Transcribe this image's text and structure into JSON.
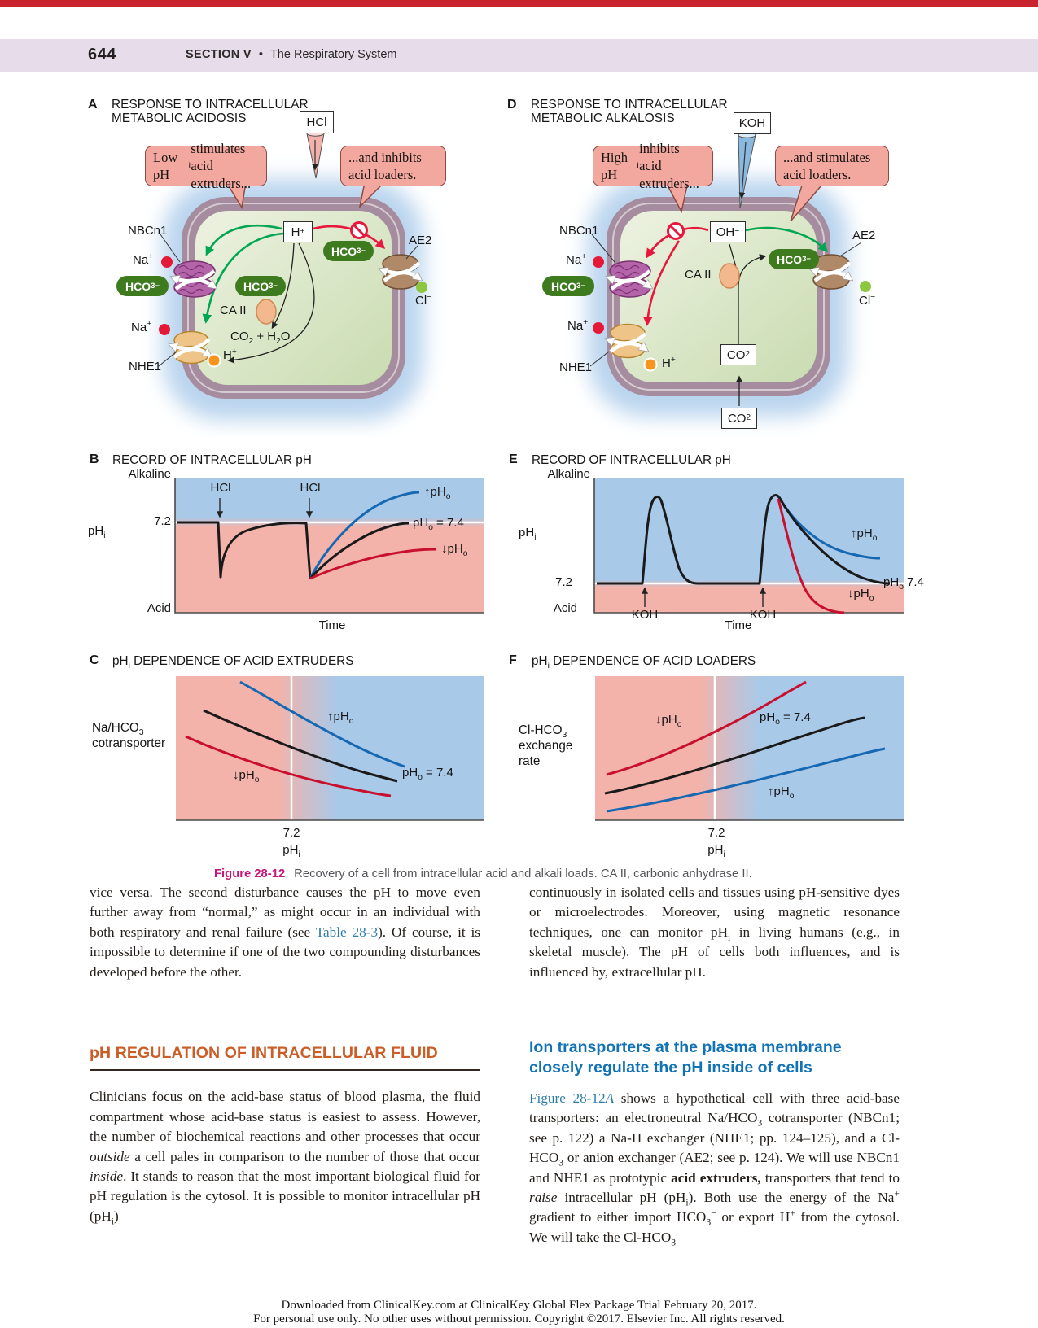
{
  "header": {
    "page_number": "644",
    "section": "SECTION V",
    "bullet": "•",
    "title": "The Respiratory System"
  },
  "colors": {
    "topbar_red": "#c9242e",
    "header_bg": "#e7dcea",
    "heading_orange": "#cb5d26",
    "heading_blue": "#1272b6",
    "link_blue": "#2e7ca6",
    "figure_label_magenta": "#c4177c",
    "curve_blue": "#1668b2",
    "curve_red": "#c8102e",
    "curve_black": "#1a1a1a",
    "pill_green": "#3e7b1f",
    "bubble_salmon": "#f2a89f",
    "plot_blue": "#a9c9e8",
    "plot_pink": "#f3b3aa"
  },
  "panelA": {
    "letter": "A",
    "title": "RESPONSE TO INTRACELLULAR<br>METABOLIC ACIDOSIS",
    "reagent": "HCl",
    "bubble_left": "Low pH<sub>i</sub> stimulates<br>acid extruders...",
    "bubble_right": "...and inhibits<br>acid loaders.",
    "h_box": "H<sup>+</sup>",
    "nbcn1": "NBCn1",
    "na": "Na<sup>+</sup>",
    "hco3": "HCO<sub>3</sub><sup>−</sup>",
    "caii": "CA II",
    "co2_h2o": "CO<sub>2</sub> + H<sub>2</sub>O",
    "h_plus": "H<sup>+</sup>",
    "nhe1": "NHE1",
    "ae2": "AE2",
    "cl": "Cl<sup>−</sup>"
  },
  "panelD": {
    "letter": "D",
    "title": "RESPONSE TO INTRACELLULAR<br>METABOLIC ALKALOSIS",
    "reagent": "KOH",
    "bubble_left": "High pH<sub>i</sub> inhibits<br>acid extruders...",
    "bubble_right": "...and stimulates<br>acid loaders.",
    "oh_box": "OH<sup>−</sup>",
    "nbcn1": "NBCn1",
    "na": "Na<sup>+</sup>",
    "hco3": "HCO<sub>3</sub><sup>−</sup>",
    "caii": "CA II",
    "co2": "CO<sub>2</sub>",
    "h_plus": "H<sup>+</sup>",
    "nhe1": "NHE1",
    "ae2": "AE2",
    "cl": "Cl<sup>−</sup>"
  },
  "panelB": {
    "letter": "B",
    "title": "RECORD OF INTRACELLULAR pH",
    "alkaline": "Alkaline",
    "tick": "7.2",
    "yaxis": "pH<sub>i</sub>",
    "acid": "Acid",
    "time": "Time",
    "event": "HCl",
    "label_up": "↑pH<sub>o</sub>",
    "label_mid": "pH<sub>o</sub> = 7.4",
    "label_down": "↓pH<sub>o</sub>"
  },
  "panelE": {
    "letter": "E",
    "title": "RECORD OF INTRACELLULAR pH",
    "alkaline": "Alkaline",
    "tick": "7.2",
    "yaxis": "pH<sub>i</sub>",
    "acid": "Acid",
    "time": "Time",
    "event": "KOH",
    "label_up": "↑pH<sub>o</sub>",
    "label_mid": "pH<sub>o</sub> 7.4",
    "label_down": "↓pH<sub>o</sub>"
  },
  "panelC": {
    "letter": "C",
    "title": "pH<sub>i</sub> DEPENDENCE OF ACID EXTRUDERS",
    "ylabel": "Na/HCO<sub>3</sub><br>cotransporter",
    "xtick": "7.2",
    "xaxis": "pH<sub>i</sub>",
    "label_up": "↑pH<sub>o</sub>",
    "label_mid": "pH<sub>o</sub> = 7.4",
    "label_down": "↓pH<sub>o</sub>"
  },
  "panelF": {
    "letter": "F",
    "title": "pH<sub>i</sub> DEPENDENCE OF ACID LOADERS",
    "ylabel": "Cl-HCO<sub>3</sub><br>exchange<br>rate",
    "xtick": "7.2",
    "xaxis": "pH<sub>i</sub>",
    "label_up": "↑pH<sub>o</sub>",
    "label_mid": "pH<sub>o</sub> = 7.4",
    "label_down": "↓pH<sub>o</sub>"
  },
  "caption": {
    "label": "Figure 28-12",
    "text": "Recovery of a cell from intracellular acid and alkali loads. CA II, carbonic anhydrase II."
  },
  "body": {
    "left_p1": "vice versa. The second disturbance causes the pH to move even further away from “normal,” as might occur in an individual with both respiratory and renal failure (see <span class=\"xref\" data-name=\"table-28-3-link\" data-interactable=\"true\">Table 28-3</span>). Of course, it is impossible to determine if one of the two compounding disturbances developed before the other.",
    "heading1": "pH REGULATION OF INTRACELLULAR FLUID",
    "left_p2": "Clinicians focus on the acid-base status of blood plasma, the fluid compartment whose acid-base status is easiest to assess. However, the number of biochemical reactions and other processes that occur <i>outside</i> a cell pales in comparison to the number of those that occur <i>inside</i>. It stands to reason that the most important biological fluid for pH regulation is the cytosol. It is possible to monitor intracellular pH (pH<sub>i</sub>)",
    "right_p1": "continuously in isolated cells and tissues using pH-sensitive dyes or microelectrodes. Moreover, using magnetic resonance techniques, one can monitor pH<sub>i</sub> in living humans (e.g., in skeletal muscle). The pH of cells both influences, and is influenced by, extracellular pH.",
    "heading2": "Ion transporters at the plasma membrane closely regulate the pH inside of cells",
    "right_p2": "<span class=\"xref\" data-name=\"figure-28-12a-link\" data-interactable=\"true\">Figure 28-12<i>A</i></span> shows a hypothetical cell with three acid-base transporters: an electroneutral Na/HCO<sub>3</sub> cotransporter (NBCn1; see p. 122) a Na-H exchanger (NHE1; pp. 124–125), and a Cl-HCO<sub>3</sub> or anion exchanger (AE2; see p. 124). We will use NBCn1 and NHE1 as prototypic <b>acid extruders,</b> transporters that tend to <i>raise</i> intracellular pH (pH<sub>i</sub>). Both use the energy of the Na<sup>+</sup> gradient to either import HCO<sub>3</sub><sup>−</sup> or export H<sup>+</sup> from the cytosol. We will take the Cl-HCO<sub>3</sub>"
  },
  "footer": {
    "line1": "Downloaded from ClinicalKey.com at ClinicalKey Global Flex Package Trial February 20, 2017.",
    "line2": "For personal use only. No other uses without permission. Copyright ©2017. Elsevier Inc. All rights reserved."
  },
  "chart_data": [
    {
      "type": "line",
      "panel": "B",
      "title": "RECORD OF INTRACELLULAR pH",
      "xlabel": "Time",
      "ylabel": "pHi",
      "y_reference_tick": 7.2,
      "events": [
        "HCl",
        "HCl"
      ],
      "legend": [
        "↑pHo",
        "pHo = 7.4",
        "↓pHo"
      ],
      "series": [
        {
          "name": "↑pHo",
          "color": "#1668b2",
          "behavior": "recovers above 7.2 after second acid load"
        },
        {
          "name": "pHo = 7.4",
          "color": "#1a1a1a",
          "behavior": "pHi dips sharply with each HCl load, recovers to ~7.2"
        },
        {
          "name": "↓pHo",
          "color": "#c8102e",
          "behavior": "recovers only to below 7.2"
        }
      ]
    },
    {
      "type": "line",
      "panel": "E",
      "title": "RECORD OF INTRACELLULAR pH",
      "xlabel": "Time",
      "ylabel": "pHi",
      "y_reference_tick": 7.2,
      "events": [
        "KOH",
        "KOH"
      ],
      "legend": [
        "↑pHo",
        "pHo 7.4",
        "↓pHo"
      ],
      "series": [
        {
          "name": "↑pHo",
          "color": "#1668b2",
          "behavior": "decays to a level above 7.2"
        },
        {
          "name": "pHo 7.4",
          "color": "#1a1a1a",
          "behavior": "pHi spikes with each KOH load, decays back to 7.2"
        },
        {
          "name": "↓pHo",
          "color": "#c8102e",
          "behavior": "decays to below 7.2"
        }
      ]
    },
    {
      "type": "line",
      "panel": "C",
      "title": "pHi DEPENDENCE OF ACID EXTRUDERS",
      "xlabel": "pHi",
      "x_reference_tick": 7.2,
      "ylabel": "Na/HCO3 cotransporter",
      "legend": [
        "↑pHo",
        "pHo = 7.4",
        "↓pHo"
      ],
      "series": [
        {
          "name": "↑pHo",
          "color": "#1668b2",
          "behavior": "highest rate, decreasing with pHi"
        },
        {
          "name": "pHo = 7.4",
          "color": "#1a1a1a",
          "behavior": "middle rate, decreasing with pHi"
        },
        {
          "name": "↓pHo",
          "color": "#c8102e",
          "behavior": "lowest rate, decreasing with pHi"
        }
      ]
    },
    {
      "type": "line",
      "panel": "F",
      "title": "pHi DEPENDENCE OF ACID LOADERS",
      "xlabel": "pHi",
      "x_reference_tick": 7.2,
      "ylabel": "Cl-HCO3 exchange rate",
      "legend": [
        "↓pHo",
        "pHo = 7.4",
        "↑pHo"
      ],
      "series": [
        {
          "name": "↓pHo",
          "color": "#c8102e",
          "behavior": "highest rate, increasing with pHi"
        },
        {
          "name": "pHo = 7.4",
          "color": "#1a1a1a",
          "behavior": "middle rate, increasing with pHi"
        },
        {
          "name": "↑pHo",
          "color": "#1668b2",
          "behavior": "lowest rate, increasing with pHi"
        }
      ]
    }
  ]
}
